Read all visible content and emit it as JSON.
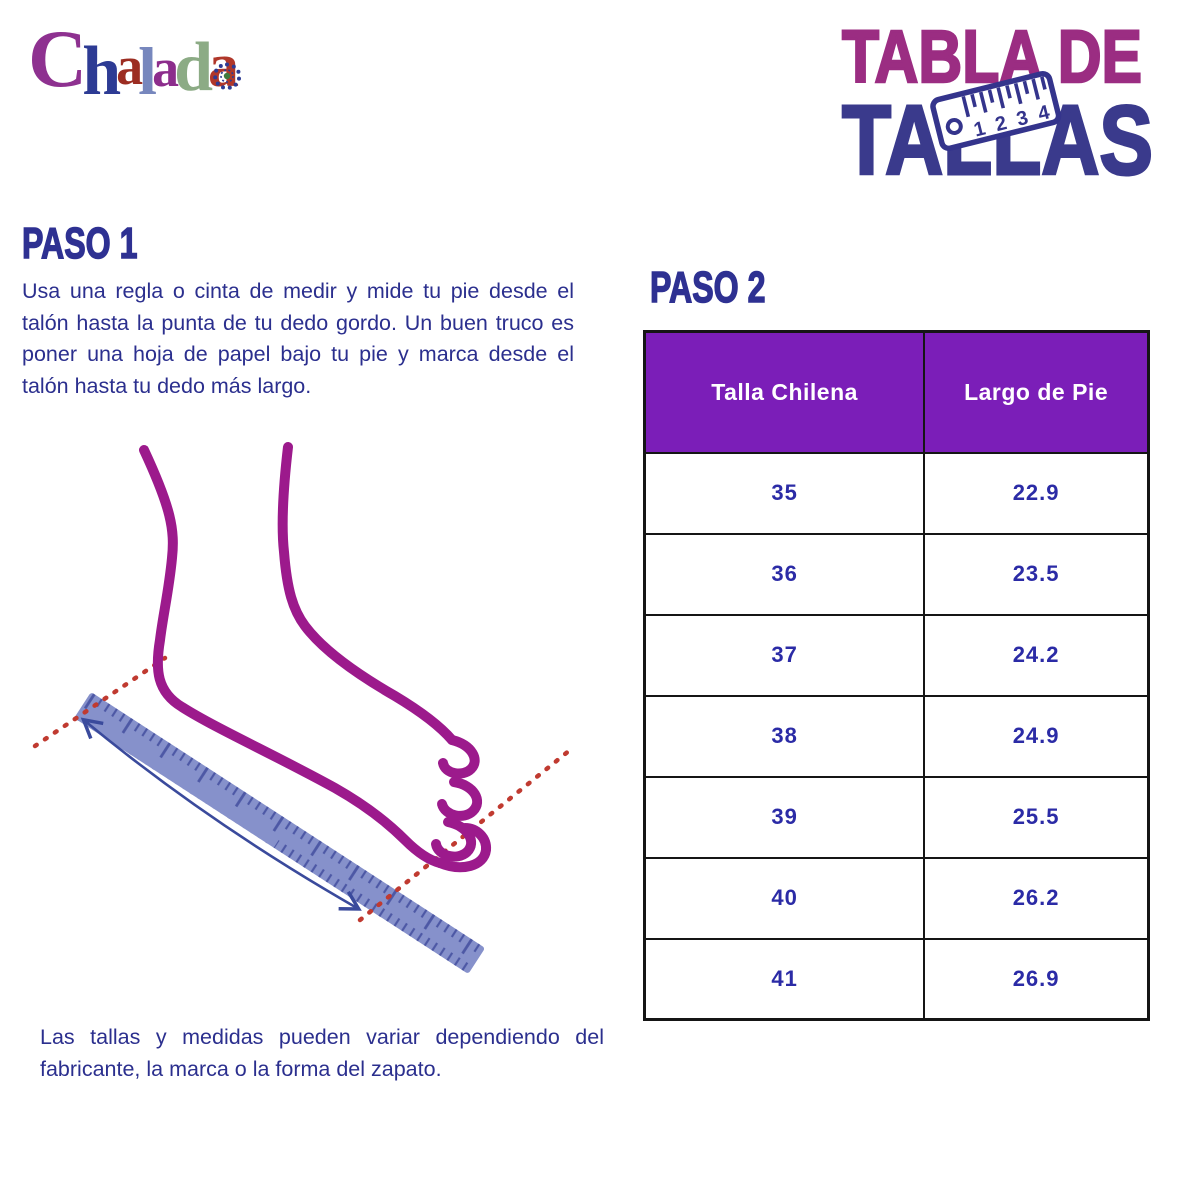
{
  "brand": {
    "name": "Chalada",
    "letters": [
      {
        "char": "C",
        "color": "#8e3190"
      },
      {
        "char": "h",
        "color": "#2d3b94"
      },
      {
        "char": "a",
        "color": "#9c2d22"
      },
      {
        "char": "l",
        "color": "#7787bd"
      },
      {
        "char": "a",
        "color": "#8c2d8c"
      },
      {
        "char": "d",
        "color": "#8cab85"
      },
      {
        "char": "a",
        "color": "#b0372a"
      }
    ]
  },
  "title": {
    "line1": "TABLA DE",
    "line2": "TALLAS",
    "line1_color": "#9b2d82",
    "line2_color": "#3a3a8c",
    "ruler_icon": {
      "numbers": [
        "1",
        "2",
        "3",
        "4"
      ]
    }
  },
  "steps": {
    "paso1": {
      "heading": "PASO 1",
      "text": "Usa una regla o cinta de medir y mide tu pie desde el talón hasta la punta de tu dedo gordo. Un buen truco es poner una hoja de papel bajo tu pie y marca desde el talón hasta tu dedo más largo."
    },
    "paso2": {
      "heading": "PASO 2"
    }
  },
  "table": {
    "headers": [
      "Talla Chilena",
      "Largo de Pie"
    ],
    "rows": [
      [
        "35",
        "22.9"
      ],
      [
        "36",
        "23.5"
      ],
      [
        "37",
        "24.2"
      ],
      [
        "38",
        "24.9"
      ],
      [
        "39",
        "25.5"
      ],
      [
        "40",
        "26.2"
      ],
      [
        "41",
        "26.9"
      ]
    ],
    "header_bg": "#7b1eb8",
    "header_text_color": "#ffffff",
    "value_color": "#2b2ba6"
  },
  "disclaimer": "Las tallas y medidas pueden variar dependiendo del fabricante, la marca o la forma del zapato.",
  "colors": {
    "heading_navy": "#2e3192",
    "body_text_navy": "#2b2f8e",
    "foot_outline": "#9c1a8c",
    "ruler_fill": "#8691cb",
    "ruler_ticks": "#4d58a5",
    "guide_dots_red": "#c03a30",
    "arrow_navy": "#3a4a9c",
    "background": "#ffffff"
  }
}
